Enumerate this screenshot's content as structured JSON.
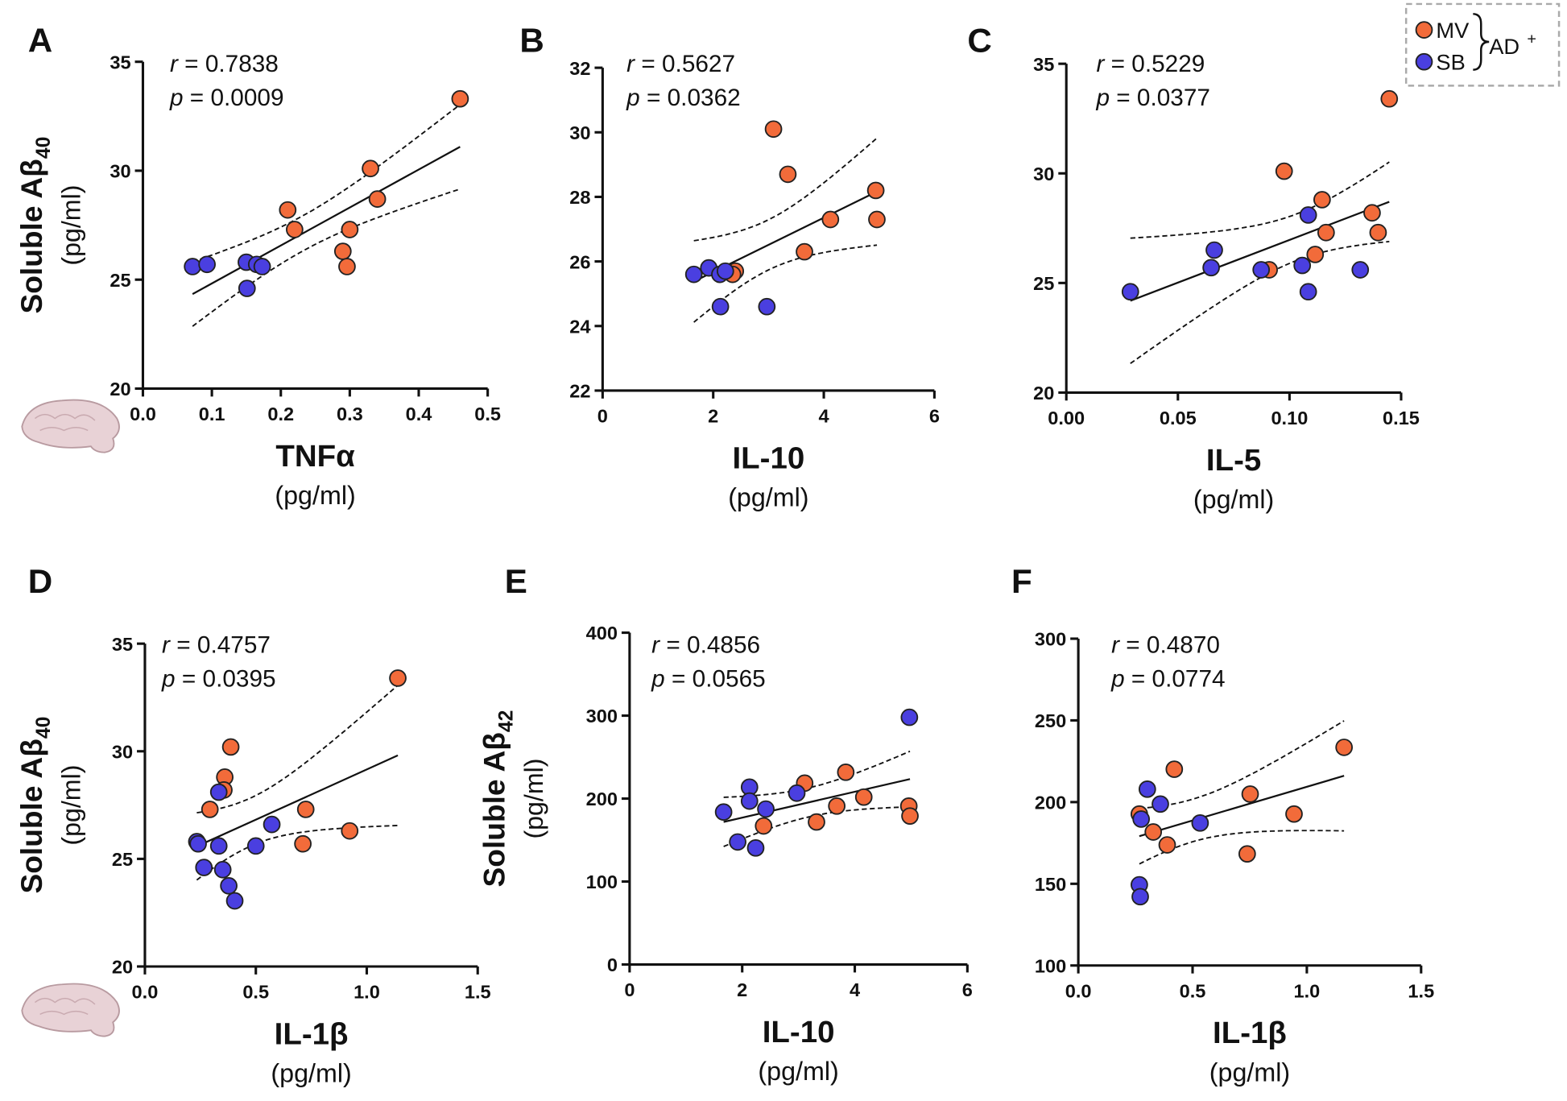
{
  "legend": {
    "series": [
      {
        "name": "MV",
        "color": "#f26b3a"
      },
      {
        "name": "SB",
        "color": "#4a3fe0"
      }
    ],
    "group": "AD",
    "group_sup": "+"
  },
  "chart_data": [
    {
      "type": "scatter",
      "label": "A",
      "annotations": [
        "r = 0.7838",
        "p = 0.0009"
      ],
      "ylabel": "Soluble Aβ",
      "ylabel_sub": "40",
      "ylabel_unit": "(pg/ml)",
      "xlabel": "TNFα",
      "xlabel_unit": "(pg/ml)",
      "xlim": [
        0,
        0.5
      ],
      "xticks": [
        {
          "value": 0,
          "label": "0.0"
        },
        0.1,
        0.2,
        0.3,
        0.4,
        0.5
      ],
      "ylim": [
        20,
        35
      ],
      "yticks": [
        20,
        25,
        30,
        35
      ],
      "series": [
        {
          "x": [
            0.46,
            0.33,
            0.34,
            0.21,
            0.22,
            0.3,
            0.29,
            0.296
          ],
          "values": [
            33.3,
            30.1,
            28.7,
            28.2,
            27.3,
            27.3,
            26.3,
            25.6
          ]
        },
        {
          "x": [
            0.072,
            0.093,
            0.15,
            0.165,
            0.173,
            0.151
          ],
          "values": [
            25.6,
            25.7,
            25.8,
            25.7,
            25.6,
            24.6
          ]
        }
      ]
    },
    {
      "type": "scatter",
      "label": "B",
      "annotations": [
        "r = 0.5627",
        "p = 0.0362"
      ],
      "xlabel": "IL-10",
      "xlabel_unit": "(pg/ml)",
      "xlim": [
        0,
        6
      ],
      "xticks": [
        0,
        2,
        4,
        6
      ],
      "ylim": [
        22,
        32
      ],
      "yticks": [
        22,
        24,
        26,
        28,
        30,
        32
      ],
      "series": [
        {
          "x": [
            3.09,
            3.35,
            4.94,
            4.96,
            4.12,
            3.65,
            2.4,
            2.35
          ],
          "values": [
            30.1,
            28.7,
            28.2,
            27.3,
            27.3,
            26.3,
            25.7,
            25.6
          ]
        },
        {
          "x": [
            1.65,
            1.92,
            2.12,
            2.22,
            2.13,
            2.97
          ],
          "values": [
            25.6,
            25.8,
            25.6,
            25.7,
            24.6,
            24.6
          ]
        }
      ]
    },
    {
      "type": "scatter",
      "label": "C",
      "annotations": [
        "r = 0.5229",
        "p = 0.0377"
      ],
      "xlabel": "IL-5",
      "xlabel_unit": "(pg/ml)",
      "xlim": [
        0,
        0.15
      ],
      "xticks": [
        {
          "value": 0,
          "label": "0.00"
        },
        {
          "value": 0.05,
          "label": "0.05"
        },
        {
          "value": 0.1,
          "label": "0.10"
        },
        {
          "value": 0.15,
          "label": "0.15"
        }
      ],
      "ylim": [
        20,
        35
      ],
      "yticks": [
        20,
        25,
        30,
        35
      ],
      "series": [
        {
          "x": [
            0.1447,
            0.0976,
            0.1146,
            0.137,
            0.1397,
            0.1164,
            0.1115,
            0.0909
          ],
          "values": [
            33.4,
            30.1,
            28.8,
            28.2,
            27.3,
            27.3,
            26.3,
            25.6
          ]
        },
        {
          "x": [
            0.0287,
            0.0663,
            0.0649,
            0.0873,
            0.1084,
            0.1057,
            0.1084,
            0.1317
          ],
          "values": [
            24.6,
            26.5,
            25.7,
            25.6,
            28.1,
            25.8,
            24.6,
            25.6
          ]
        }
      ]
    },
    {
      "type": "scatter",
      "label": "D",
      "annotations": [
        "r = 0.4757",
        "p = 0.0395"
      ],
      "ylabel": "Soluble Aβ",
      "ylabel_sub": "40",
      "ylabel_unit": "(pg/ml)",
      "xlabel": "IL-1β",
      "xlabel_unit": "(pg/ml)",
      "xlim": [
        0,
        1.5
      ],
      "xticks": [
        {
          "value": 0,
          "label": "0.0"
        },
        0.5,
        {
          "value": 1,
          "label": "1.0"
        },
        1.5
      ],
      "ylim": [
        20,
        35
      ],
      "yticks": [
        20,
        25,
        30,
        35
      ],
      "series": [
        {
          "x": [
            1.14,
            0.387,
            0.36,
            0.356,
            0.293,
            0.725,
            0.923,
            0.712
          ],
          "values": [
            33.4,
            30.2,
            28.8,
            28.2,
            27.3,
            27.3,
            26.3,
            25.7
          ]
        },
        {
          "x": [
            0.234,
            0.24,
            0.333,
            0.333,
            0.266,
            0.351,
            0.378,
            0.405,
            0.5,
            0.572
          ],
          "values": [
            25.8,
            25.7,
            28.1,
            25.6,
            24.6,
            24.5,
            23.75,
            23.05,
            25.6,
            26.6
          ]
        }
      ]
    },
    {
      "type": "scatter",
      "label": "E",
      "annotations": [
        "r = 0.4856",
        "p = 0.0565"
      ],
      "ylabel": "Soluble Aβ",
      "ylabel_sub": "42",
      "ylabel_unit": "(pg/ml)",
      "xlabel": "IL-10",
      "xlabel_unit": "(pg/ml)",
      "xlim": [
        0,
        6
      ],
      "xticks": [
        0,
        2,
        4,
        6
      ],
      "ylim": [
        0,
        400
      ],
      "yticks": [
        0,
        100,
        200,
        300,
        400
      ],
      "series": [
        {
          "x": [
            3.11,
            3.84,
            4.16,
            3.68,
            4.96,
            4.98,
            3.32,
            2.38
          ],
          "values": [
            218.6,
            231.8,
            201.8,
            191,
            191,
            179,
            171.8,
            167
          ]
        },
        {
          "x": [
            4.97,
            2.13,
            2.13,
            1.67,
            2.42,
            2.97,
            1.92,
            2.24
          ],
          "values": [
            298,
            213.8,
            197,
            183.8,
            187.4,
            206.6,
            147.7,
            140.5
          ]
        }
      ]
    },
    {
      "type": "scatter",
      "label": "F",
      "annotations": [
        "r = 0.4870",
        "p = 0.0774"
      ],
      "xlabel": "IL-1β",
      "xlabel_unit": "(pg/ml)",
      "xlim": [
        0,
        1.5
      ],
      "xticks": [
        {
          "value": 0,
          "label": "0.0"
        },
        0.5,
        {
          "value": 1,
          "label": "1.0"
        },
        1.5
      ],
      "ylim": [
        100,
        300
      ],
      "yticks": [
        100,
        150,
        200,
        250,
        300
      ],
      "series": [
        {
          "x": [
            1.163,
            0.42,
            0.752,
            0.267,
            0.328,
            0.944,
            0.389,
            0.739
          ],
          "values": [
            233.5,
            220.1,
            204.9,
            192.7,
            181.7,
            192.7,
            173.8,
            168.3
          ]
        },
        {
          "x": [
            0.302,
            0.359,
            0.275,
            0.533,
            0.267,
            0.271
          ],
          "values": [
            207.9,
            198.8,
            189.6,
            187.2,
            149.4,
            142.1
          ]
        }
      ]
    }
  ]
}
